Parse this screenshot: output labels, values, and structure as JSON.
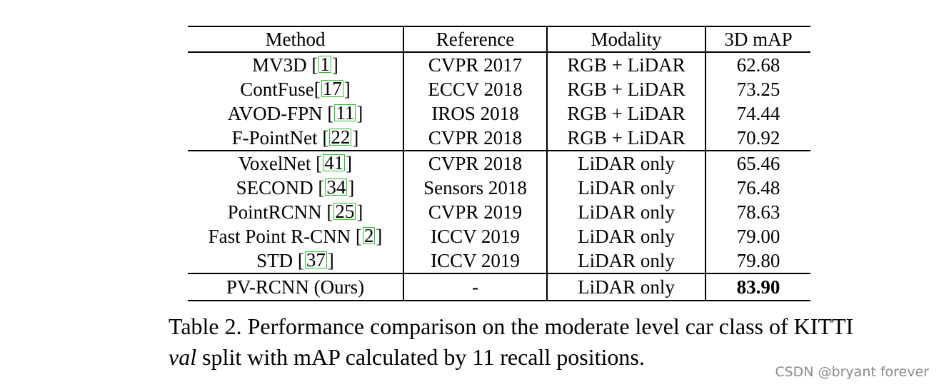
{
  "table": {
    "headers": [
      "Method",
      "Reference",
      "Modality",
      "3D mAP"
    ],
    "groups": [
      {
        "rows": [
          {
            "method": "MV3D [",
            "cite": "1",
            "method_end": "]",
            "reference": "CVPR 2017",
            "modality": "RGB + LiDAR",
            "map": "62.68"
          },
          {
            "method": "ContFuse[",
            "cite": "17",
            "method_end": "]",
            "reference": "ECCV 2018",
            "modality": "RGB + LiDAR",
            "map": "73.25"
          },
          {
            "method": "AVOD-FPN [",
            "cite": "11",
            "method_end": "]",
            "reference": "IROS 2018",
            "modality": "RGB + LiDAR",
            "map": "74.44"
          },
          {
            "method": "F-PointNet [",
            "cite": "22",
            "method_end": "]",
            "reference": "CVPR 2018",
            "modality": "RGB + LiDAR",
            "map": "70.92"
          }
        ]
      },
      {
        "rows": [
          {
            "method": "VoxelNet [",
            "cite": "41",
            "method_end": "]",
            "reference": "CVPR 2018",
            "modality": "LiDAR only",
            "map": "65.46"
          },
          {
            "method": "SECOND [",
            "cite": "34",
            "method_end": "]",
            "reference": "Sensors 2018",
            "modality": "LiDAR only",
            "map": "76.48"
          },
          {
            "method": "PointRCNN [",
            "cite": "25",
            "method_end": "]",
            "reference": "CVPR 2019",
            "modality": "LiDAR only",
            "map": "78.63"
          },
          {
            "method": "Fast Point R-CNN [",
            "cite": "2",
            "method_end": "]",
            "reference": "ICCV 2019",
            "modality": "LiDAR only",
            "map": "79.00"
          },
          {
            "method": "STD [",
            "cite": "37",
            "method_end": "]",
            "reference": "ICCV 2019",
            "modality": "LiDAR only",
            "map": "79.80"
          }
        ]
      },
      {
        "rows": [
          {
            "method": "PV-RCNN (Ours)",
            "cite": "",
            "method_end": "",
            "reference": "-",
            "modality": "LiDAR only",
            "map": "83.90",
            "best": true
          }
        ]
      }
    ]
  },
  "caption": {
    "part1": "Table 2. Performance comparison on the moderate level car class of KITTI ",
    "italic": "val",
    "part2": " split with mAP calculated by 11 recall positions."
  },
  "watermark": "CSDN @bryant forever",
  "colors": {
    "cite_box": "#22cc22",
    "watermark": "#8a8a8a"
  }
}
